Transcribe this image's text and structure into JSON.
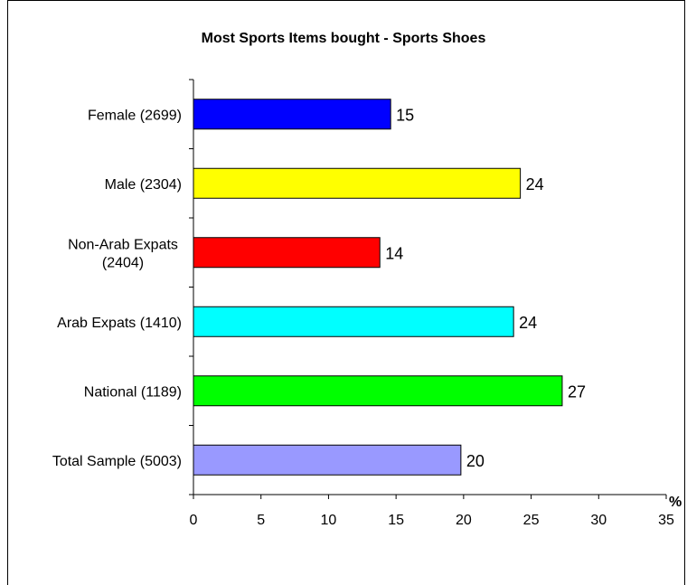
{
  "chart_data": {
    "type": "bar",
    "orientation": "horizontal",
    "title": "Most Sports Items bought - Sports Shoes",
    "xlabel": "%",
    "ylabel": "",
    "xlim": [
      0,
      35
    ],
    "x_ticks": [
      "0",
      "5",
      "10",
      "15",
      "20",
      "25",
      "30",
      "35"
    ],
    "categories": [
      [
        "Female (2699)"
      ],
      [
        "Male (2304)"
      ],
      [
        "Non-Arab Expats",
        "(2404)"
      ],
      [
        "Arab Expats (1410)"
      ],
      [
        "National (1189)"
      ],
      [
        "Total Sample (5003)"
      ]
    ],
    "values": [
      14.6,
      24.2,
      13.8,
      23.7,
      27.3,
      19.8
    ],
    "data_labels": [
      "15",
      "24",
      "14",
      "24",
      "27",
      "20"
    ],
    "colors": [
      "#0000ff",
      "#ffff00",
      "#ff0000",
      "#00ffff",
      "#00ff00",
      "#9999ff"
    ],
    "grid": false,
    "legend": "none"
  }
}
